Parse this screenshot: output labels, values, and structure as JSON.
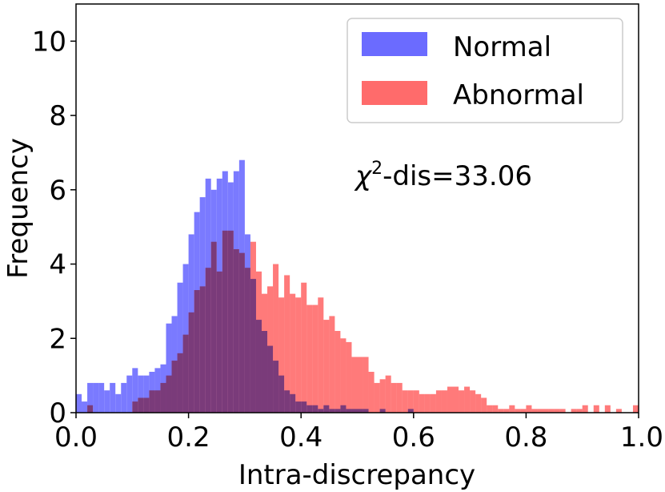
{
  "chart_data": {
    "type": "histogram",
    "xlabel": "Intra-discrepancy",
    "ylabel": "Frequency",
    "xlim": [
      0.0,
      1.0
    ],
    "ylim": [
      0,
      11
    ],
    "x_ticks": [
      "0.0",
      "0.2",
      "0.4",
      "0.6",
      "0.8",
      "1.0"
    ],
    "x_tick_values": [
      0.0,
      0.2,
      0.4,
      0.6,
      0.8,
      1.0
    ],
    "y_ticks": [
      "0",
      "2",
      "4",
      "6",
      "8",
      "10"
    ],
    "y_tick_values": [
      0,
      2,
      4,
      6,
      8,
      10
    ],
    "bin_width": 0.01,
    "bin_start": 0.0,
    "legend_position": "top-right",
    "annotation": {
      "symbol": "χ",
      "superscript": "2",
      "text": "-dis=33.06"
    },
    "series": [
      {
        "name": "Normal",
        "color": "#6b6bff",
        "values": [
          0.5,
          0.3,
          0.8,
          0.8,
          0.8,
          0.6,
          0.8,
          0.5,
          0.8,
          1.0,
          1.2,
          1.0,
          1.0,
          1.1,
          1.2,
          1.3,
          2.4,
          2.6,
          3.5,
          4.0,
          4.8,
          5.4,
          5.8,
          6.3,
          6.0,
          6.3,
          6.5,
          6.2,
          6.5,
          6.8,
          4.8,
          3.6,
          2.5,
          2.2,
          1.8,
          1.4,
          1.0,
          0.6,
          0.5,
          0.3,
          0.3,
          0.2,
          0.2,
          0.1,
          0.2,
          0.1,
          0.1,
          0.2,
          0.1,
          0.1,
          0.1,
          0.1,
          0.0,
          0.0,
          0.1,
          0.0,
          0.0,
          0.0,
          0.0,
          0.1,
          0.0,
          0,
          0,
          0,
          0,
          0,
          0,
          0,
          0,
          0,
          0,
          0,
          0,
          0,
          0,
          0,
          0,
          0,
          0,
          0,
          0,
          0,
          0,
          0,
          0,
          0,
          0,
          0,
          0,
          0,
          0,
          0,
          0,
          0,
          0,
          0,
          0,
          0,
          0,
          0
        ]
      },
      {
        "name": "Abnormal",
        "color": "#ff6b6b",
        "values": [
          0,
          0,
          0.2,
          0,
          0,
          0,
          0,
          0,
          0,
          0,
          0.3,
          0.4,
          0.4,
          0.6,
          0.6,
          0.8,
          1.0,
          1.4,
          1.6,
          2.1,
          2.7,
          3.3,
          3.4,
          3.9,
          4.6,
          3.8,
          4.9,
          4.9,
          4.4,
          4.3,
          3.9,
          4.6,
          3.8,
          3.2,
          3.4,
          4.0,
          3.1,
          3.7,
          3.2,
          3.1,
          3.5,
          2.9,
          2.9,
          3.1,
          2.5,
          2.6,
          2.2,
          2.0,
          1.9,
          1.5,
          1.5,
          1.5,
          1.1,
          0.8,
          0.9,
          1.0,
          0.8,
          0.8,
          0.6,
          0.6,
          0.6,
          0.5,
          0.5,
          0.5,
          0.6,
          0.6,
          0.7,
          0.7,
          0.6,
          0.7,
          0.6,
          0.5,
          0.4,
          0.2,
          0.2,
          0.1,
          0.1,
          0.2,
          0.1,
          0.1,
          0.2,
          0.1,
          0.1,
          0.1,
          0.1,
          0.1,
          0.1,
          0.0,
          0.1,
          0.1,
          0.2,
          0.0,
          0.2,
          0.0,
          0.2,
          0.0,
          0.1,
          0.0,
          0.0,
          0.2
        ]
      }
    ]
  }
}
